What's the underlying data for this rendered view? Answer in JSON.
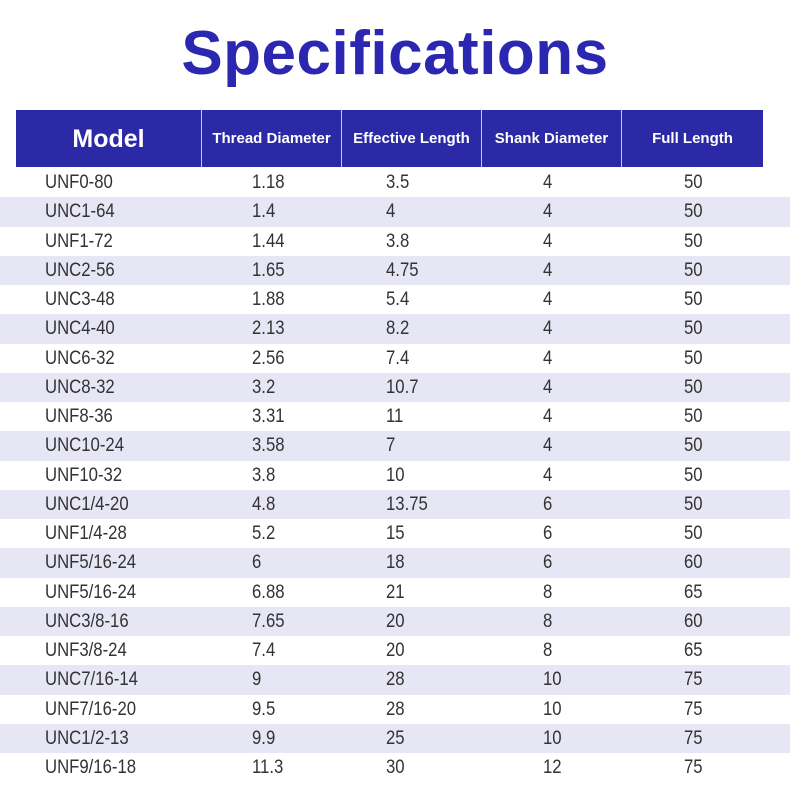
{
  "title": "Specifications",
  "header": {
    "model": "Model",
    "thread_diameter": "Thread Diameter",
    "effective_length": "Effective Length",
    "shank_diameter": "Shank Diameter",
    "full_length": "Full Length"
  },
  "colors": {
    "title": "#2b27b0",
    "header_bg": "#2c29a6",
    "stripe": "#e6e6f5"
  },
  "rows": [
    [
      "UNF0-80",
      "1.18",
      "3.5",
      "4",
      "50"
    ],
    [
      "UNC1-64",
      "1.4",
      "4",
      "4",
      "50"
    ],
    [
      "UNF1-72",
      "1.44",
      "3.8",
      "4",
      "50"
    ],
    [
      "UNC2-56",
      "1.65",
      "4.75",
      "4",
      "50"
    ],
    [
      "UNC3-48",
      "1.88",
      "5.4",
      "4",
      "50"
    ],
    [
      "UNC4-40",
      "2.13",
      "8.2",
      "4",
      "50"
    ],
    [
      "UNC6-32",
      "2.56",
      "7.4",
      "4",
      "50"
    ],
    [
      "UNC8-32",
      "3.2",
      "10.7",
      "4",
      "50"
    ],
    [
      "UNF8-36",
      "3.31",
      "11",
      "4",
      "50"
    ],
    [
      "UNC10-24",
      "3.58",
      "7",
      "4",
      "50"
    ],
    [
      "UNF10-32",
      "3.8",
      "10",
      "4",
      "50"
    ],
    [
      "UNC1/4-20",
      "4.8",
      "13.75",
      "6",
      "50"
    ],
    [
      "UNF1/4-28",
      "5.2",
      "15",
      "6",
      "50"
    ],
    [
      "UNF5/16-24",
      "6",
      "18",
      "6",
      "60"
    ],
    [
      "UNF5/16-24",
      "6.88",
      "21",
      "8",
      "65"
    ],
    [
      "UNC3/8-16",
      "7.65",
      "20",
      "8",
      "60"
    ],
    [
      "UNF3/8-24",
      "7.4",
      "20",
      "8",
      "65"
    ],
    [
      "UNC7/16-14",
      "9",
      "28",
      "10",
      "75"
    ],
    [
      "UNF7/16-20",
      "9.5",
      "28",
      "10",
      "75"
    ],
    [
      "UNC1/2-13",
      "9.9",
      "25",
      "10",
      "75"
    ],
    [
      "UNF9/16-18",
      "11.3",
      "30",
      "12",
      "75"
    ]
  ]
}
